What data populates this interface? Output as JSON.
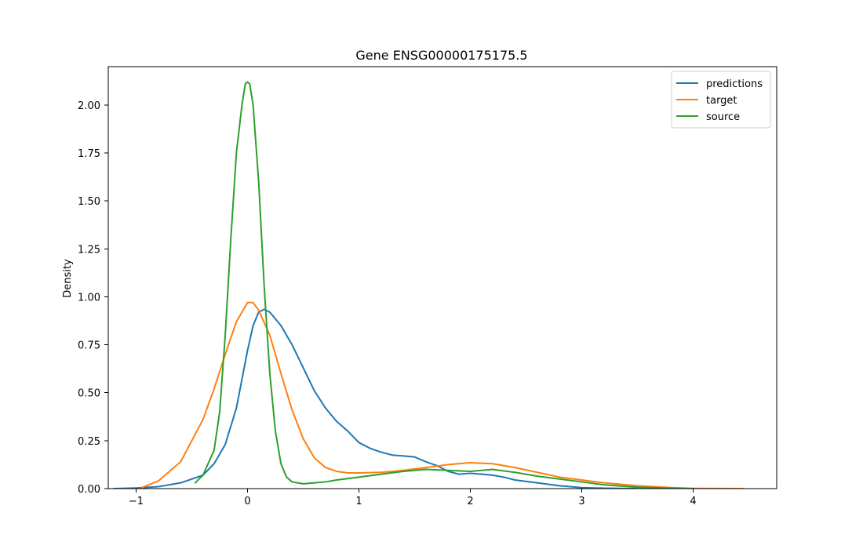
{
  "chart_data": {
    "type": "line",
    "title": "Gene ENSG00000175175.5",
    "xlabel": "",
    "ylabel": "Density",
    "xlim": [
      -1.25,
      4.75
    ],
    "ylim": [
      0,
      2.2
    ],
    "x_ticks": [
      {
        "value": -1,
        "label": "−1"
      },
      {
        "value": 0,
        "label": "0"
      },
      {
        "value": 1,
        "label": "1"
      },
      {
        "value": 2,
        "label": "2"
      },
      {
        "value": 3,
        "label": "3"
      },
      {
        "value": 4,
        "label": "4"
      }
    ],
    "y_ticks": [
      {
        "value": 0.0,
        "label": "0.00"
      },
      {
        "value": 0.25,
        "label": "0.25"
      },
      {
        "value": 0.5,
        "label": "0.50"
      },
      {
        "value": 0.75,
        "label": "0.75"
      },
      {
        "value": 1.0,
        "label": "1.00"
      },
      {
        "value": 1.25,
        "label": "1.25"
      },
      {
        "value": 1.5,
        "label": "1.50"
      },
      {
        "value": 1.75,
        "label": "1.75"
      },
      {
        "value": 2.0,
        "label": "2.00"
      }
    ],
    "grid": false,
    "legend": {
      "position": "top-right"
    },
    "series": [
      {
        "name": "predictions",
        "color": "#1f77b4",
        "points": [
          [
            -1.2,
            0.0
          ],
          [
            -1.0,
            0.003
          ],
          [
            -0.8,
            0.01
          ],
          [
            -0.6,
            0.03
          ],
          [
            -0.4,
            0.07
          ],
          [
            -0.3,
            0.13
          ],
          [
            -0.2,
            0.23
          ],
          [
            -0.1,
            0.42
          ],
          [
            0.0,
            0.72
          ],
          [
            0.05,
            0.85
          ],
          [
            0.1,
            0.92
          ],
          [
            0.15,
            0.935
          ],
          [
            0.2,
            0.92
          ],
          [
            0.3,
            0.85
          ],
          [
            0.4,
            0.75
          ],
          [
            0.5,
            0.63
          ],
          [
            0.6,
            0.51
          ],
          [
            0.7,
            0.42
          ],
          [
            0.8,
            0.35
          ],
          [
            0.9,
            0.3
          ],
          [
            1.0,
            0.24
          ],
          [
            1.1,
            0.21
          ],
          [
            1.2,
            0.19
          ],
          [
            1.3,
            0.175
          ],
          [
            1.4,
            0.17
          ],
          [
            1.5,
            0.165
          ],
          [
            1.6,
            0.14
          ],
          [
            1.7,
            0.12
          ],
          [
            1.8,
            0.09
          ],
          [
            1.9,
            0.075
          ],
          [
            2.0,
            0.08
          ],
          [
            2.1,
            0.075
          ],
          [
            2.2,
            0.07
          ],
          [
            2.3,
            0.06
          ],
          [
            2.4,
            0.045
          ],
          [
            2.6,
            0.03
          ],
          [
            2.8,
            0.015
          ],
          [
            3.0,
            0.005
          ],
          [
            3.2,
            0.002
          ],
          [
            3.5,
            0.0
          ]
        ]
      },
      {
        "name": "target",
        "color": "#ff7f0e",
        "points": [
          [
            -0.95,
            0.005
          ],
          [
            -0.8,
            0.04
          ],
          [
            -0.6,
            0.14
          ],
          [
            -0.4,
            0.36
          ],
          [
            -0.3,
            0.52
          ],
          [
            -0.2,
            0.7
          ],
          [
            -0.1,
            0.87
          ],
          [
            0.0,
            0.97
          ],
          [
            0.05,
            0.97
          ],
          [
            0.1,
            0.93
          ],
          [
            0.2,
            0.8
          ],
          [
            0.3,
            0.6
          ],
          [
            0.4,
            0.41
          ],
          [
            0.5,
            0.26
          ],
          [
            0.6,
            0.16
          ],
          [
            0.7,
            0.11
          ],
          [
            0.8,
            0.09
          ],
          [
            0.9,
            0.082
          ],
          [
            1.0,
            0.082
          ],
          [
            1.2,
            0.085
          ],
          [
            1.4,
            0.095
          ],
          [
            1.6,
            0.11
          ],
          [
            1.8,
            0.125
          ],
          [
            2.0,
            0.135
          ],
          [
            2.2,
            0.13
          ],
          [
            2.4,
            0.11
          ],
          [
            2.6,
            0.085
          ],
          [
            2.8,
            0.06
          ],
          [
            3.0,
            0.045
          ],
          [
            3.2,
            0.03
          ],
          [
            3.5,
            0.015
          ],
          [
            3.8,
            0.005
          ],
          [
            4.0,
            0.001
          ],
          [
            4.45,
            0.0
          ]
        ]
      },
      {
        "name": "source",
        "color": "#2ca02c",
        "points": [
          [
            -0.47,
            0.03
          ],
          [
            -0.4,
            0.07
          ],
          [
            -0.3,
            0.2
          ],
          [
            -0.25,
            0.4
          ],
          [
            -0.2,
            0.8
          ],
          [
            -0.15,
            1.3
          ],
          [
            -0.1,
            1.75
          ],
          [
            -0.05,
            2.0
          ],
          [
            -0.02,
            2.11
          ],
          [
            0.0,
            2.12
          ],
          [
            0.02,
            2.11
          ],
          [
            0.05,
            2.0
          ],
          [
            0.1,
            1.6
          ],
          [
            0.15,
            1.05
          ],
          [
            0.2,
            0.6
          ],
          [
            0.25,
            0.3
          ],
          [
            0.3,
            0.13
          ],
          [
            0.35,
            0.06
          ],
          [
            0.4,
            0.035
          ],
          [
            0.5,
            0.025
          ],
          [
            0.6,
            0.03
          ],
          [
            0.7,
            0.035
          ],
          [
            0.8,
            0.045
          ],
          [
            1.0,
            0.06
          ],
          [
            1.2,
            0.075
          ],
          [
            1.4,
            0.09
          ],
          [
            1.6,
            0.1
          ],
          [
            1.8,
            0.095
          ],
          [
            2.0,
            0.09
          ],
          [
            2.2,
            0.1
          ],
          [
            2.4,
            0.085
          ],
          [
            2.6,
            0.065
          ],
          [
            2.8,
            0.05
          ],
          [
            3.0,
            0.035
          ],
          [
            3.2,
            0.02
          ],
          [
            3.5,
            0.007
          ],
          [
            3.8,
            0.002
          ],
          [
            4.0,
            0.0
          ]
        ]
      }
    ]
  }
}
